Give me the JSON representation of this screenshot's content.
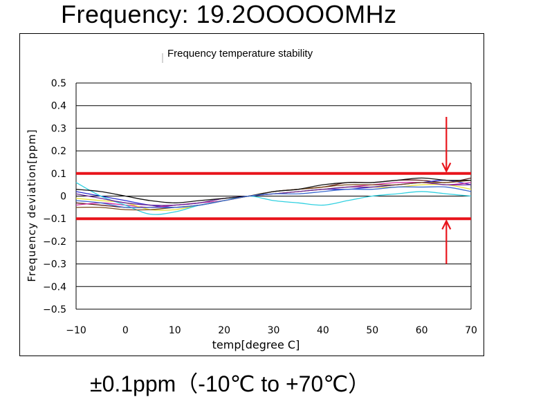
{
  "page": {
    "title": "Frequency: 19.2OOOOOMHz",
    "caption": "±0.1ppm（-10℃  to +70℃）"
  },
  "colors": {
    "limit_line": "#e8141b",
    "grid": "#000000",
    "axis_text": "#000000"
  },
  "chart_data": {
    "type": "line",
    "title": "Frequency temperature stability",
    "xlabel": "temp[degree C]",
    "ylabel": "Frequency deviation[ppm]",
    "xlim": [
      -10,
      70
    ],
    "ylim": [
      -0.5,
      0.5
    ],
    "x_ticks": [
      -10,
      0,
      10,
      20,
      30,
      40,
      50,
      60,
      70
    ],
    "y_ticks": [
      0.5,
      0.4,
      0.3,
      0.2,
      0.1,
      0,
      -0.1,
      -0.2,
      -0.3,
      -0.4,
      -0.5
    ],
    "x_tick_labels": [
      "−10",
      "0",
      "10",
      "20",
      "30",
      "40",
      "50",
      "60",
      "70"
    ],
    "y_tick_labels": [
      "0.5",
      "0.4",
      "0.3",
      "0.2",
      "0.1",
      "0",
      "−0.1",
      "−0.2",
      "−0.3",
      "−0.4",
      "−0.5"
    ],
    "grid": "horizontal",
    "limits": [
      {
        "name": "upper-limit",
        "value": 0.1
      },
      {
        "name": "lower-limit",
        "value": -0.1
      }
    ],
    "arrows": [
      {
        "name": "upper-limit-arrow",
        "x": 65,
        "from": 0.35,
        "to": 0.11
      },
      {
        "name": "lower-limit-arrow",
        "x": 65,
        "from": -0.3,
        "to": -0.11
      }
    ],
    "x": [
      -10,
      -5,
      0,
      5,
      10,
      15,
      20,
      25,
      30,
      35,
      40,
      45,
      50,
      55,
      60,
      65,
      70
    ],
    "series": [
      {
        "name": "series-1",
        "color": "#5a1a1a",
        "values": [
          -0.03,
          -0.04,
          -0.05,
          -0.05,
          -0.04,
          -0.03,
          -0.01,
          0.0,
          0.02,
          0.03,
          0.04,
          0.06,
          0.06,
          0.07,
          0.07,
          0.06,
          0.08
        ]
      },
      {
        "name": "series-2",
        "color": "#2a2ad0",
        "values": [
          0.02,
          0.0,
          -0.02,
          -0.04,
          -0.05,
          -0.04,
          -0.02,
          0.0,
          0.01,
          0.02,
          0.03,
          0.03,
          0.04,
          0.05,
          0.06,
          0.07,
          0.05
        ]
      },
      {
        "name": "series-3",
        "color": "#d02aa0",
        "values": [
          -0.04,
          -0.03,
          -0.04,
          -0.05,
          -0.04,
          -0.03,
          -0.02,
          0.0,
          0.01,
          0.02,
          0.03,
          0.04,
          0.05,
          0.06,
          0.06,
          0.05,
          0.06
        ]
      },
      {
        "name": "series-4",
        "color": "#e8e030",
        "values": [
          -0.01,
          -0.02,
          -0.03,
          -0.06,
          -0.06,
          -0.04,
          -0.02,
          0.0,
          0.01,
          0.02,
          0.03,
          0.04,
          0.04,
          0.04,
          0.05,
          0.05,
          0.03
        ]
      },
      {
        "name": "series-5",
        "color": "#30d0e0",
        "values": [
          0.06,
          0.0,
          -0.04,
          -0.08,
          -0.07,
          -0.04,
          -0.02,
          0.0,
          -0.02,
          -0.03,
          -0.04,
          -0.02,
          0.0,
          0.01,
          0.02,
          0.01,
          0.0
        ]
      },
      {
        "name": "series-6",
        "color": "#6a2a9a",
        "values": [
          0.01,
          -0.01,
          -0.03,
          -0.04,
          -0.04,
          -0.03,
          -0.01,
          0.0,
          0.01,
          0.02,
          0.03,
          0.04,
          0.04,
          0.05,
          0.06,
          0.05,
          0.05
        ]
      },
      {
        "name": "series-7",
        "color": "#7a4a1a",
        "values": [
          -0.05,
          -0.05,
          -0.06,
          -0.06,
          -0.05,
          -0.04,
          -0.02,
          0.0,
          0.02,
          0.03,
          0.04,
          0.05,
          0.05,
          0.05,
          0.06,
          0.06,
          0.07
        ]
      },
      {
        "name": "series-8",
        "color": "#101010",
        "values": [
          0.03,
          0.02,
          0.0,
          -0.02,
          -0.03,
          -0.02,
          -0.01,
          0.0,
          0.02,
          0.03,
          0.05,
          0.06,
          0.06,
          0.07,
          0.08,
          0.07,
          0.07
        ]
      },
      {
        "name": "series-9",
        "color": "#3a6ad0",
        "values": [
          -0.02,
          -0.03,
          -0.05,
          -0.05,
          -0.05,
          -0.04,
          -0.02,
          0.0,
          0.01,
          0.01,
          0.02,
          0.03,
          0.03,
          0.04,
          0.04,
          0.04,
          0.02
        ]
      }
    ]
  }
}
